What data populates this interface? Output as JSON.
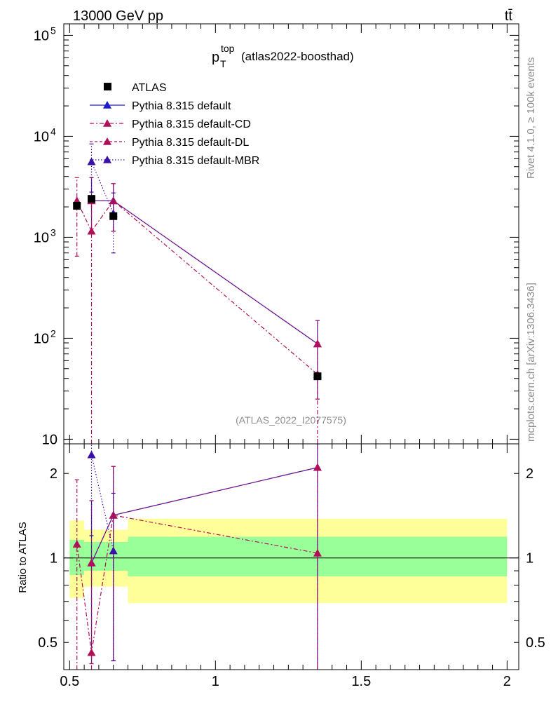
{
  "header": {
    "energy_label": "13000 GeV pp",
    "process_label": "tt̄"
  },
  "side_labels": {
    "rivet": "Rivet 4.1.0, ≥ 100k events",
    "mcplots": "mcplots.cern.ch [arXiv:1306.3436]"
  },
  "plot_title": {
    "main": "p",
    "sub": "T",
    "sup": "top",
    "rest": "(atlas2022-boosthad)"
  },
  "analysis_tag": "(ATLAS_2022_I2077575)",
  "ratio_ylabel": "Ratio to ATLAS",
  "colors": {
    "data": "#000000",
    "default": "#1a1acc",
    "cd": "#b01058",
    "dl": "#b01058",
    "mbr": "#3a10a8",
    "band_inner": "#99ff99",
    "band_outer": "#ffff99"
  },
  "chart_data": [
    {
      "type": "scatter",
      "name": "main",
      "yscale": "log",
      "xlim": [
        0.48,
        2.04
      ],
      "ylim": [
        9,
        130000
      ],
      "yticks": [
        {
          "value": 10,
          "label": "10"
        },
        {
          "value": 100,
          "label": "10",
          "sup": "2"
        },
        {
          "value": 1000,
          "label": "10",
          "sup": "3"
        },
        {
          "value": 10000,
          "label": "10",
          "sup": "4"
        },
        {
          "value": 100000,
          "label": "10",
          "sup": "5"
        }
      ],
      "legend": {
        "position": "top-left",
        "entries": [
          {
            "label": "ATLAS",
            "marker": "square",
            "color_key": "data",
            "style": "none"
          },
          {
            "label": "Pythia 8.315 default",
            "marker": "triangle",
            "color_key": "default",
            "style": "solid"
          },
          {
            "label": "Pythia 8.315 default-CD",
            "marker": "triangle",
            "color_key": "cd",
            "style": "dashdot"
          },
          {
            "label": "Pythia 8.315 default-DL",
            "marker": "triangle",
            "color_key": "dl",
            "style": "dashed"
          },
          {
            "label": "Pythia 8.315 default-MBR",
            "marker": "triangle",
            "color_key": "mbr",
            "style": "dotted"
          }
        ]
      },
      "series": [
        {
          "name": "ATLAS",
          "color_key": "data",
          "marker": "square",
          "points": [
            {
              "x": 0.525,
              "y": 2050
            },
            {
              "x": 0.575,
              "y": 2400
            },
            {
              "x": 0.65,
              "y": 1620
            },
            {
              "x": 1.35,
              "y": 42
            }
          ]
        },
        {
          "name": "Pythia 8.315 default",
          "color_key": "default",
          "dash": "",
          "offset": 0,
          "points": [
            {
              "x": 0.575,
              "y": 2300,
              "lo": 1100,
              "hi": 3900
            },
            {
              "x": 0.65,
              "y": 2300,
              "lo": 1150,
              "hi": 3400
            },
            {
              "x": 1.35,
              "y": 88,
              "lo": 25,
              "hi": 150
            }
          ]
        },
        {
          "name": "Pythia 8.315 default-CD",
          "color_key": "cd",
          "dash": "6,3,2,3",
          "offset": 0,
          "points": [
            {
              "x": 0.525,
              "y": 2300,
              "lo": 650,
              "hi": 3900
            },
            {
              "x": 0.575,
              "y": 1150,
              "lo": 5,
              "hi": 2400
            },
            {
              "x": 0.65,
              "y": 2300,
              "lo": 1150,
              "hi": 3400
            },
            {
              "x": 1.35,
              "y": 44,
              "lo": 5,
              "hi": 90
            }
          ]
        },
        {
          "name": "Pythia 8.315 default-DL",
          "color_key": "dl",
          "dash": "4,3",
          "offset": 0,
          "points": [
            {
              "x": 0.575,
              "y": 2300,
              "lo": 1100,
              "hi": 3900
            },
            {
              "x": 0.65,
              "y": 2300,
              "lo": 1150,
              "hi": 3400
            },
            {
              "x": 1.35,
              "y": 88,
              "lo": 25,
              "hi": 150
            }
          ]
        },
        {
          "name": "Pythia 8.315 default-MBR",
          "color_key": "mbr",
          "dash": "1.5,2.5",
          "offset": 0,
          "points": [
            {
              "x": 0.575,
              "y": 5600,
              "lo": 2800,
              "hi": 8400
            },
            {
              "x": 0.65,
              "y": 1720,
              "lo": 700,
              "hi": 2750
            }
          ]
        }
      ]
    },
    {
      "type": "scatter",
      "name": "ratio",
      "yscale": "log",
      "xlim": [
        0.48,
        2.04
      ],
      "ylim": [
        0.4,
        2.55
      ],
      "ylabel": "Ratio to ATLAS",
      "yticks": [
        {
          "value": 0.5,
          "label": "0.5"
        },
        {
          "value": 1,
          "label": "1"
        },
        {
          "value": 2,
          "label": "2"
        }
      ],
      "xticks": [
        {
          "value": 0.5,
          "label": "0.5"
        },
        {
          "value": 1,
          "label": "1"
        },
        {
          "value": 1.5,
          "label": "1.5"
        },
        {
          "value": 2,
          "label": "2"
        }
      ],
      "bands": [
        {
          "x0": 0.5,
          "x1": 0.55,
          "inner": [
            0.87,
            1.16
          ],
          "outer": [
            0.72,
            1.36
          ]
        },
        {
          "x0": 0.55,
          "x1": 0.6,
          "inner": [
            0.9,
            1.14
          ],
          "outer": [
            0.79,
            1.26
          ]
        },
        {
          "x0": 0.6,
          "x1": 0.7,
          "inner": [
            0.9,
            1.14
          ],
          "outer": [
            0.79,
            1.26
          ]
        },
        {
          "x0": 0.7,
          "x1": 2.0,
          "inner": [
            0.86,
            1.19
          ],
          "outer": [
            0.69,
            1.38
          ]
        }
      ],
      "series": [
        {
          "name": "Pythia 8.315 default",
          "color_key": "default",
          "dash": "",
          "points": [
            {
              "x": 0.575,
              "y": 0.96,
              "lo": 0.42,
              "hi": 1.6
            },
            {
              "x": 0.65,
              "y": 1.42,
              "lo": 0.43,
              "hi": 2.12
            },
            {
              "x": 1.35,
              "y": 2.1,
              "lo": 0.3,
              "hi": 3.0
            }
          ]
        },
        {
          "name": "Pythia 8.315 default-CD",
          "color_key": "cd",
          "dash": "6,3,2,3",
          "points": [
            {
              "x": 0.525,
              "y": 1.12,
              "lo": 0.3,
              "hi": 1.9
            },
            {
              "x": 0.575,
              "y": 0.46,
              "lo": 0.3,
              "hi": 1.0
            },
            {
              "x": 0.65,
              "y": 1.42,
              "lo": 0.43,
              "hi": 2.12
            },
            {
              "x": 1.35,
              "y": 1.04,
              "lo": 0.3,
              "hi": 2.1
            }
          ]
        },
        {
          "name": "Pythia 8.315 default-DL",
          "color_key": "dl",
          "dash": "4,3",
          "points": [
            {
              "x": 0.575,
              "y": 0.96,
              "lo": 0.42,
              "hi": 1.6
            },
            {
              "x": 0.65,
              "y": 1.42,
              "lo": 0.43,
              "hi": 2.12
            },
            {
              "x": 1.35,
              "y": 2.1,
              "lo": 0.3,
              "hi": 3.0
            }
          ]
        },
        {
          "name": "Pythia 8.315 default-MBR",
          "color_key": "mbr",
          "dash": "1.5,2.5",
          "points": [
            {
              "x": 0.575,
              "y": 2.33,
              "lo": 1.2,
              "hi": 3.5
            },
            {
              "x": 0.65,
              "y": 1.06,
              "lo": 0.43,
              "hi": 1.7
            }
          ]
        }
      ]
    }
  ]
}
